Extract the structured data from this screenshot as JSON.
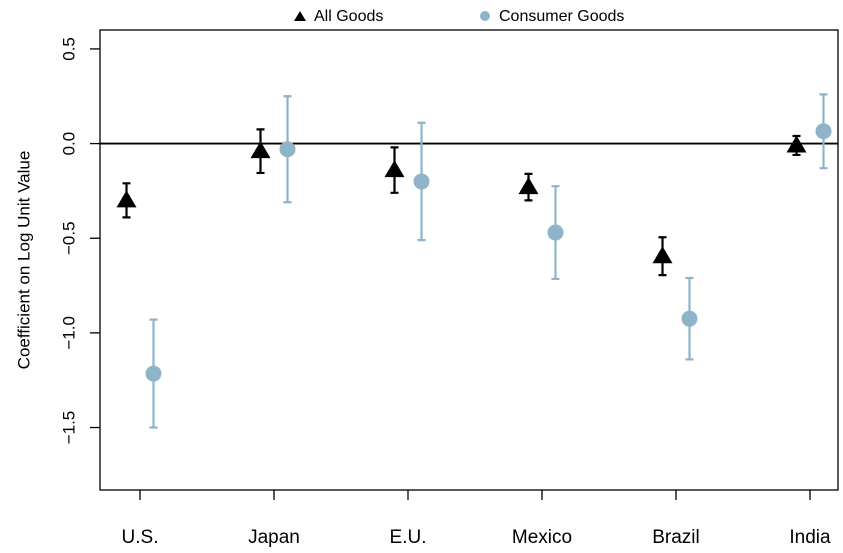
{
  "chart_data": {
    "type": "errorbar",
    "y_label": "Coefficient on Log Unit Value",
    "categories": [
      "U.S.",
      "Japan",
      "E.U.",
      "Mexico",
      "Brazil",
      "India"
    ],
    "series": [
      {
        "name": "All Goods",
        "color": "#000000",
        "marker": "triangle",
        "values": [
          -0.3,
          -0.04,
          -0.14,
          -0.23,
          -0.595,
          -0.01
        ],
        "errors": [
          0.09,
          0.115,
          0.12,
          0.07,
          0.1,
          0.05
        ]
      },
      {
        "name": "Consumer Goods",
        "color": "#8fb3c8",
        "marker": "circle",
        "values": [
          -1.215,
          -0.03,
          -0.2,
          -0.47,
          -0.925,
          0.065
        ],
        "errors": [
          0.285,
          0.28,
          0.31,
          0.245,
          0.215,
          0.195
        ]
      }
    ],
    "ylim": [
      -1.83,
      0.6
    ],
    "yticks": [
      -1.5,
      -1.0,
      -0.5,
      0.0,
      0.5
    ],
    "ytick_labels": [
      "−1.5",
      "−1.0",
      "−0.5",
      "0.0",
      "0.5"
    ],
    "hline": 0,
    "legend": "top"
  }
}
